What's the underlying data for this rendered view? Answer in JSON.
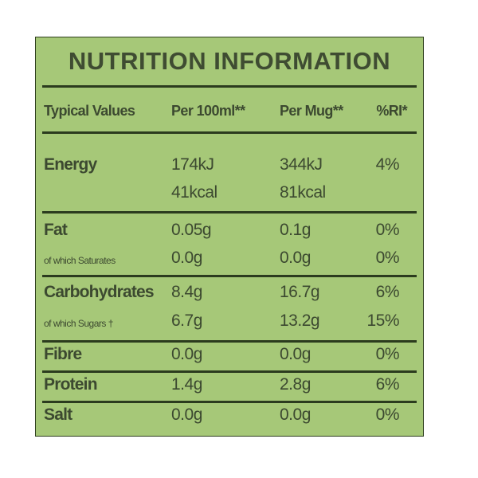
{
  "label": {
    "title": "NUTRITION INFORMATION",
    "headers": [
      "Typical Values",
      "Per 100ml**",
      "Per Mug**",
      "%RI*"
    ],
    "rows": [
      {
        "name": "Energy",
        "per100": "174kJ",
        "permug": "344kJ",
        "ri": "4%"
      },
      {
        "name": "",
        "per100": "41kcal",
        "permug": "81kcal",
        "ri": ""
      },
      {
        "name": "Fat",
        "per100": "0.05g",
        "permug": "0.1g",
        "ri": "0%"
      },
      {
        "name": "of which Saturates",
        "per100": "0.0g",
        "permug": "0.0g",
        "ri": "0%"
      },
      {
        "name": "Carbohydrates",
        "per100": "8.4g",
        "permug": "16.7g",
        "ri": "6%"
      },
      {
        "name": "of which Sugars †",
        "per100": "6.7g",
        "permug": "13.2g",
        "ri": "15%"
      },
      {
        "name": "Fibre",
        "per100": "0.0g",
        "permug": "0.0g",
        "ri": "0%"
      },
      {
        "name": "Protein",
        "per100": "1.4g",
        "permug": "2.8g",
        "ri": "6%"
      },
      {
        "name": "Salt",
        "per100": "0.0g",
        "permug": "0.0g",
        "ri": "0%"
      }
    ]
  },
  "colors": {
    "background": "#a6c878",
    "text": "#3c4930",
    "rule": "#2b3b1e"
  }
}
